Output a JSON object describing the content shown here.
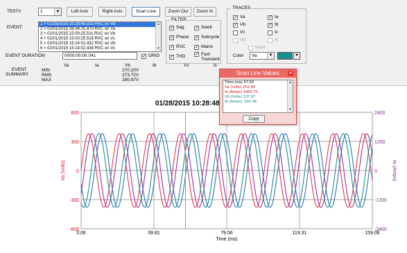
{
  "toolbar": {
    "test_label": "TEST#",
    "test_value": "1",
    "left_axis": "Left Axis",
    "right_axis": "Right Axis",
    "scan_line": "Scan Line",
    "zoom_out": "Zoom Out",
    "zoom_in": "Zoom In"
  },
  "event": {
    "label": "EVENT:",
    "items": [
      "1 > 01/28/2015 10:28:48.533  RVC  on  Vb",
      "2 > 02/01/2015 09:34:25.470  RVC  on  Va",
      "3 > 02/01/2015 15:00:25.511  RVC  on  Vb",
      "4 > 02/01/2015 15:00:25.516  RVC  on  Vc",
      "5 > 02/01/2015 15:14:02.432  RVC  on  Vb",
      "6 > 02/01/2015 15:14:02.438  RVC  on  Vc"
    ],
    "duration_label": "EVENT DURATION",
    "duration_value": "0000:00:00.041",
    "grid_label": "GRID"
  },
  "filter": {
    "title": "FILTER",
    "items": [
      {
        "label": "Sag",
        "checked": true
      },
      {
        "label": "Swell",
        "checked": true
      },
      {
        "label": "Phase",
        "checked": true
      },
      {
        "label": "Subcycle",
        "checked": true
      },
      {
        "label": "RVC",
        "checked": true
      },
      {
        "label": "Mains",
        "checked": true
      },
      {
        "label": "THD",
        "checked": true
      },
      {
        "label": "Fast Transient",
        "checked": true
      }
    ]
  },
  "traces": {
    "title": "TRACES",
    "items": [
      {
        "label": "Va",
        "checked": true
      },
      {
        "label": "Ia",
        "checked": true
      },
      {
        "label": "Vb",
        "checked": true
      },
      {
        "label": "Ib",
        "checked": true
      },
      {
        "label": "Vc",
        "checked": false
      },
      {
        "label": "Ic",
        "checked": false
      },
      {
        "label": "Vd",
        "checked": false
      },
      {
        "label": "In",
        "checked": false
      },
      {
        "label": "Ineut",
        "checked": false
      }
    ],
    "color_label": "Color",
    "color_value": "Va",
    "swatch_color": "#1a8f8f"
  },
  "summary": {
    "label_line1": "EVENT",
    "label_line2": "SUMMARY",
    "rows": [
      "MIN",
      "RMS",
      "MAX"
    ],
    "columns": [
      "Va",
      "Ia",
      "Vb",
      "Ib",
      "Vc",
      "Ic"
    ],
    "vb_values": [
      "270.20V",
      "273.72V",
      "280.97V"
    ]
  },
  "scanpopup": {
    "title": "Scan Line Values",
    "rows": [
      {
        "text": "Time (ms)   57.03",
        "color": "#000000"
      },
      {
        "text": "Va (Volts)   262.89",
        "color": "#d0102a"
      },
      {
        "text": "Ia (Amps)   1669.76",
        "color": "#d0102a"
      },
      {
        "text": "Vb (Volts)   137.87",
        "color": "#1f7f8a"
      },
      {
        "text": "Ib (Amps)   -302.46",
        "color": "#1f7f8a"
      }
    ],
    "copy_label": "Copy"
  },
  "chart_data": {
    "type": "line",
    "title": "01/28/2015 10:28:48.537",
    "xlabel": "Time (ms)",
    "ylabel_left": "Va (Volts)",
    "ylabel_right": "Ia (Amps)",
    "x_ticks": [
      "0.06",
      "39.81",
      "79.56",
      "119.31",
      "159.06"
    ],
    "y_left_ticks": [
      "600",
      "300",
      "0",
      "-300",
      "-600"
    ],
    "y_right_ticks": [
      "2400",
      "1200",
      "0",
      "-1200",
      "-2400"
    ],
    "xlim": [
      0.06,
      159.06
    ],
    "ylim_left": [
      -600,
      600
    ],
    "ylim_right": [
      -2400,
      2400
    ],
    "grid": true,
    "scan_line_x": 57.03,
    "series": [
      {
        "name": "Va",
        "color": "#e23a4a",
        "amplitude": 380,
        "phase_deg": 0
      },
      {
        "name": "Ia",
        "color": "#9a2fa6",
        "amplitude": 380,
        "phase_deg": -40
      },
      {
        "name": "Vb",
        "color": "#1f8c8f",
        "amplitude": 380,
        "phase_deg": -120
      },
      {
        "name": "Ib",
        "color": "#2a73b8",
        "amplitude": 380,
        "phase_deg": -160
      }
    ],
    "frequency_hz": 60
  }
}
